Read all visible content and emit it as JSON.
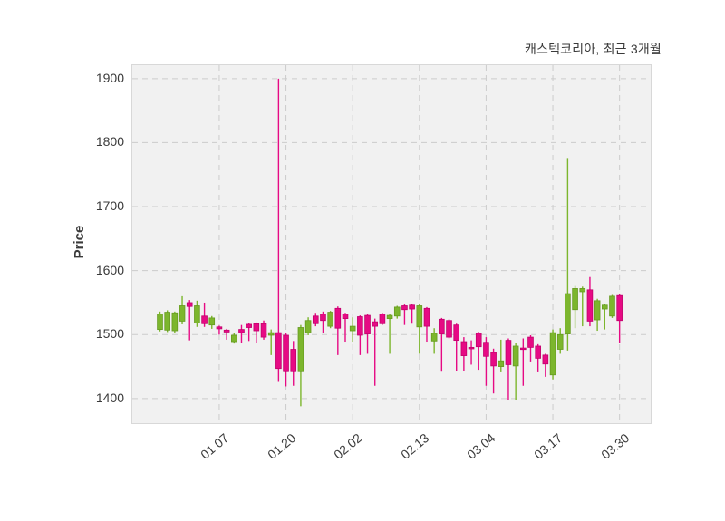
{
  "chart_data": {
    "type": "candlestick",
    "title": "캐스텍코리아, 최근 3개월",
    "ylabel": "Price",
    "legend": "none",
    "grid": true,
    "grid_color": "#cccccc",
    "axes_background": "#f1f1f1",
    "up_color": "#7cb62d",
    "up_edge_color": "#669a20",
    "down_color": "#e60a84",
    "down_edge_color": "#c2006c",
    "y_ticks": [
      1400,
      1500,
      1600,
      1700,
      1800,
      1900
    ],
    "ylim": [
      1363,
      1921
    ],
    "x_tick_indices": [
      8,
      17,
      26,
      35,
      44,
      53,
      62
    ],
    "x_tick_labels": [
      "01.07",
      "01.20",
      "02.02",
      "02.13",
      "03.04",
      "03.17",
      "03.30"
    ],
    "ohlc_note": "each candle is [open, high, low, close]",
    "ohlc": [
      [
        1508,
        1536,
        1505,
        1532
      ],
      [
        1507,
        1538,
        1504,
        1535
      ],
      [
        1506,
        1536,
        1503,
        1534
      ],
      [
        1521,
        1560,
        1516,
        1545
      ],
      [
        1550,
        1554,
        1491,
        1544
      ],
      [
        1518,
        1553,
        1512,
        1545
      ],
      [
        1529,
        1550,
        1512,
        1517
      ],
      [
        1515,
        1529,
        1509,
        1526
      ],
      [
        1512,
        1514,
        1500,
        1509
      ],
      [
        1507,
        1509,
        1492,
        1504
      ],
      [
        1489,
        1503,
        1486,
        1499
      ],
      [
        1508,
        1515,
        1487,
        1503
      ],
      [
        1516,
        1518,
        1490,
        1511
      ],
      [
        1517,
        1519,
        1487,
        1506
      ],
      [
        1517,
        1522,
        1492,
        1496
      ],
      [
        1499,
        1508,
        1468,
        1503
      ],
      [
        1503,
        1900,
        1426,
        1447
      ],
      [
        1499,
        1503,
        1419,
        1442
      ],
      [
        1477,
        1490,
        1420,
        1442
      ],
      [
        1442,
        1515,
        1388,
        1511
      ],
      [
        1503,
        1527,
        1499,
        1522
      ],
      [
        1529,
        1534,
        1513,
        1517
      ],
      [
        1532,
        1536,
        1503,
        1522
      ],
      [
        1513,
        1537,
        1510,
        1535
      ],
      [
        1541,
        1544,
        1468,
        1510
      ],
      [
        1532,
        1534,
        1489,
        1525
      ],
      [
        1506,
        1527,
        1489,
        1513
      ],
      [
        1528,
        1530,
        1468,
        1499
      ],
      [
        1530,
        1532,
        1470,
        1501
      ],
      [
        1520,
        1525,
        1420,
        1513
      ],
      [
        1532,
        1534,
        1515,
        1517
      ],
      [
        1525,
        1532,
        1470,
        1530
      ],
      [
        1529,
        1545,
        1525,
        1543
      ],
      [
        1545,
        1547,
        1515,
        1539
      ],
      [
        1546,
        1548,
        1517,
        1540
      ],
      [
        1512,
        1548,
        1470,
        1545
      ],
      [
        1541,
        1543,
        1489,
        1513
      ],
      [
        1490,
        1510,
        1470,
        1502
      ],
      [
        1524,
        1526,
        1442,
        1501
      ],
      [
        1522,
        1524,
        1494,
        1496
      ],
      [
        1515,
        1517,
        1443,
        1491
      ],
      [
        1489,
        1496,
        1443,
        1467
      ],
      [
        1480,
        1491,
        1453,
        1478
      ],
      [
        1502,
        1504,
        1445,
        1481
      ],
      [
        1488,
        1496,
        1420,
        1466
      ],
      [
        1472,
        1478,
        1408,
        1451
      ],
      [
        1450,
        1492,
        1441,
        1459
      ],
      [
        1491,
        1494,
        1397,
        1453
      ],
      [
        1451,
        1487,
        1397,
        1482
      ],
      [
        1479,
        1494,
        1420,
        1477
      ],
      [
        1496,
        1499,
        1458,
        1480
      ],
      [
        1482,
        1485,
        1441,
        1463
      ],
      [
        1468,
        1470,
        1434,
        1454
      ],
      [
        1437,
        1508,
        1430,
        1503
      ],
      [
        1477,
        1510,
        1470,
        1500
      ],
      [
        1501,
        1776,
        1475,
        1564
      ],
      [
        1539,
        1576,
        1510,
        1572
      ],
      [
        1567,
        1575,
        1513,
        1572
      ],
      [
        1570,
        1590,
        1513,
        1521
      ],
      [
        1523,
        1556,
        1506,
        1553
      ],
      [
        1540,
        1548,
        1508,
        1546
      ],
      [
        1529,
        1562,
        1526,
        1560
      ],
      [
        1561,
        1563,
        1487,
        1522
      ]
    ]
  }
}
